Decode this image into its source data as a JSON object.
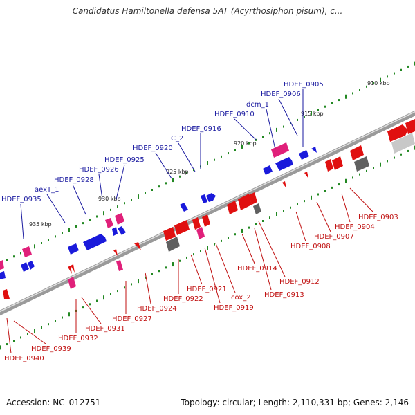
{
  "title": "Candidatus Hamiltonella defensa 5AT (Acyrthosiphon pisum), c...",
  "footer": {
    "accession": "Accession: NC_012751",
    "summary": "Topology: circular; Length: 2,110,331 bp; Genes: 2,146"
  },
  "colors": {
    "backbone": "#8a8a8a",
    "forward_cds": "#1a1adb",
    "reverse_cds": "#e01010",
    "rna": "#e0207a",
    "pseudo": "#606060",
    "forward_label": "#1a1aa0",
    "reverse_label": "#c01010",
    "tick_dot": "#228822"
  },
  "scale": {
    "ticks": [
      {
        "label": "910 kbp"
      },
      {
        "label": "915 kbp"
      },
      {
        "label": "920 kbp"
      },
      {
        "label": "925 kbp"
      },
      {
        "label": "930 kbp"
      },
      {
        "label": "935 kbp"
      }
    ]
  },
  "forward_labels": [
    "HDEF_0905",
    "HDEF_0906",
    "dcm_1",
    "HDEF_0910",
    "HDEF_0916",
    "C_2",
    "HDEF_0920",
    "HDEF_0925",
    "HDEF_0926",
    "HDEF_0928",
    "aexT_1",
    "HDEF_0935"
  ],
  "reverse_labels": [
    "HDEF_0903",
    "HDEF_0904",
    "HDEF_0907",
    "HDEF_0908",
    "HDEF_0912",
    "HDEF_0913",
    "HDEF_0914",
    "cox_2",
    "HDEF_0919",
    "HDEF_0921",
    "HDEF_0922",
    "HDEF_0924",
    "HDEF_0927",
    "HDEF_0931",
    "HDEF_0932",
    "HDEF_0939",
    "HDEF_0940"
  ]
}
